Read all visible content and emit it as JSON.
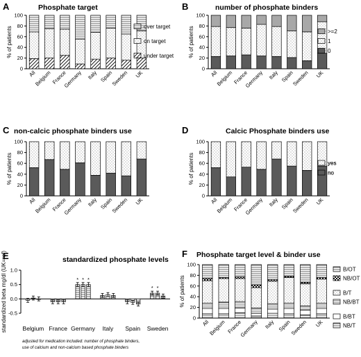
{
  "chart_data": [
    {
      "panel": "A",
      "type": "bar",
      "stacked": true,
      "title": "Phosphate target",
      "ylabel": "% of patients",
      "ylim": [
        0,
        100
      ],
      "yticks": [
        0,
        20,
        40,
        60,
        80,
        100
      ],
      "categories": [
        "All",
        "Belgium",
        "France",
        "Germany",
        "Italy",
        "Spain",
        "Sweden",
        "UK"
      ],
      "series": [
        {
          "name": "under target",
          "pattern": "diag",
          "values": [
            19,
            20,
            25,
            9,
            18,
            20,
            16,
            20
          ]
        },
        {
          "name": "on target",
          "pattern": "dots",
          "values": [
            50,
            55,
            49,
            46,
            50,
            56,
            49,
            51
          ]
        },
        {
          "name": "over target",
          "pattern": "hlines",
          "values": [
            31,
            25,
            26,
            45,
            32,
            24,
            35,
            29
          ]
        }
      ],
      "legend_position": "right"
    },
    {
      "panel": "B",
      "type": "bar",
      "stacked": true,
      "title": "number of phosphate binders",
      "ylabel": "% of patients",
      "ylim": [
        0,
        100
      ],
      "yticks": [
        0,
        20,
        40,
        60,
        80,
        100
      ],
      "categories": [
        "All",
        "Belgium",
        "France",
        "Germany",
        "Italy",
        "Spain",
        "Sweden",
        "UK"
      ],
      "series": [
        {
          "name": "0",
          "color": "#5a5a5a",
          "values": [
            23,
            24,
            26,
            24,
            23,
            21,
            15,
            29
          ]
        },
        {
          "name": "1",
          "pattern": "dots",
          "values": [
            56,
            53,
            50,
            59,
            56,
            50,
            54,
            59
          ]
        },
        {
          "name": ">=2",
          "color": "#a8a8a8",
          "values": [
            21,
            23,
            24,
            17,
            21,
            29,
            31,
            12
          ]
        }
      ],
      "legend_position": "right"
    },
    {
      "panel": "C",
      "type": "bar",
      "stacked": true,
      "title": "non-calcic phosphate binders use",
      "ylabel": "% of patients",
      "ylim": [
        0,
        100
      ],
      "yticks": [
        0,
        20,
        40,
        60,
        80,
        100
      ],
      "categories": [
        "All",
        "Belgium",
        "France",
        "Germany",
        "Italy",
        "Spain",
        "Sweden",
        "UK"
      ],
      "series": [
        {
          "name": "no",
          "color": "#5a5a5a",
          "values": [
            52,
            67,
            49,
            61,
            38,
            42,
            37,
            68
          ]
        },
        {
          "name": "yes",
          "pattern": "dots",
          "values": [
            48,
            33,
            51,
            39,
            62,
            58,
            63,
            32
          ]
        }
      ],
      "legend_position": "right"
    },
    {
      "panel": "D",
      "type": "bar",
      "stacked": true,
      "title": "Calcic Phosphate binders use",
      "ylabel": "% of patients",
      "ylim": [
        0,
        100
      ],
      "yticks": [
        0,
        20,
        40,
        60,
        80,
        100
      ],
      "categories": [
        "All",
        "Belgium",
        "France",
        "Germany",
        "Italy",
        "Spain",
        "Sweden",
        "UK"
      ],
      "series": [
        {
          "name": "no",
          "color": "#5a5a5a",
          "values": [
            52,
            35,
            53,
            49,
            68,
            55,
            47,
            55
          ]
        },
        {
          "name": "yes",
          "pattern": "dots",
          "values": [
            48,
            65,
            47,
            51,
            32,
            45,
            53,
            45
          ]
        }
      ],
      "legend_position": "right"
    },
    {
      "panel": "E",
      "type": "bar",
      "title": "standardized phosphate levels",
      "ylabel": "standardized beta mg/dl (UK=ref)",
      "ylim": [
        -0.5,
        1.0
      ],
      "yticks": [
        -0.5,
        0.0,
        0.5,
        1.0
      ],
      "yticklabels": [
        "-0.5",
        "0.0",
        "0.5",
        "1.0"
      ],
      "categories": [
        "Belgium",
        "France",
        "Germany",
        "Italy",
        "Spain",
        "Sweden"
      ],
      "bars_per_group": 3,
      "values": [
        [
          -0.05,
          0.03,
          0.0
        ],
        [
          -0.1,
          -0.1,
          -0.1
        ],
        [
          0.5,
          0.5,
          0.5
        ],
        [
          0.12,
          0.15,
          0.12
        ],
        [
          -0.1,
          -0.12,
          -0.18
        ],
        [
          0.2,
          0.2,
          0.1
        ]
      ],
      "errors": [
        [
          0.07,
          0.07,
          0.07
        ],
        [
          0.07,
          0.07,
          0.07
        ],
        [
          0.07,
          0.07,
          0.07
        ],
        [
          0.07,
          0.07,
          0.07
        ],
        [
          0.07,
          0.07,
          0.07
        ],
        [
          0.07,
          0.07,
          0.07
        ]
      ],
      "significant": [
        [],
        [],
        [
          0,
          1,
          2
        ],
        [],
        [],
        [
          0,
          1
        ]
      ],
      "significance_marker": "*",
      "note_lines": [
        "adjusted for medication included: number of phosphate binders,",
        "use of calcium and non-calcium based phosphate binders"
      ]
    },
    {
      "panel": "F",
      "type": "bar",
      "stacked": true,
      "title": "Phosphate target level & binder use",
      "ylabel": "% of patients",
      "ylim": [
        0,
        100
      ],
      "yticks": [
        0,
        20,
        40,
        60,
        80,
        100
      ],
      "categories": [
        "All",
        "Belgium",
        "France",
        "Germany",
        "Italy",
        "Spain",
        "Sweden",
        "UK"
      ],
      "series": [
        {
          "name": "NB/T",
          "pattern": "hlines",
          "values": [
            8,
            8,
            10,
            4,
            9,
            8,
            6,
            8
          ]
        },
        {
          "name": "B/BT",
          "color": "#ffffff",
          "values": [
            10,
            10,
            9,
            5,
            8,
            10,
            9,
            10
          ]
        },
        {
          "name": "NB/BT",
          "pattern": "hlines",
          "values": [
            10,
            12,
            12,
            10,
            10,
            10,
            8,
            10
          ]
        },
        {
          "name": "B/T",
          "pattern": "dots",
          "values": [
            42,
            44,
            43,
            38,
            42,
            48,
            41,
            45
          ]
        },
        {
          "name": "NB/OT",
          "pattern": "checker",
          "values": [
            4,
            2,
            3,
            5,
            3,
            2,
            3,
            3
          ]
        },
        {
          "name": "B/OT",
          "pattern": "hlines",
          "values": [
            26,
            24,
            23,
            38,
            28,
            22,
            33,
            24
          ]
        }
      ],
      "legend_order": [
        "B/OT",
        "NB/OT",
        "B/T",
        "NB/BT",
        "B/BT",
        "NB/T"
      ],
      "legend_position": "right"
    }
  ]
}
